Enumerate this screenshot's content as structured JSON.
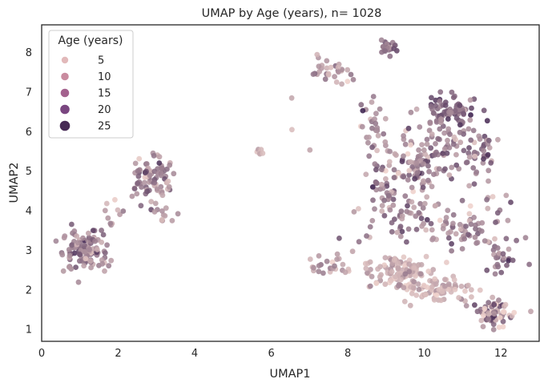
{
  "chart_data": {
    "type": "scatter",
    "title": "UMAP by Age (years), n= 1028",
    "xlabel": "UMAP1",
    "ylabel": "UMAP2",
    "xlim": [
      0,
      13
    ],
    "ylim": [
      0.7,
      8.7
    ],
    "x_ticks": [
      0,
      2,
      4,
      6,
      8,
      10,
      12
    ],
    "y_ticks": [
      1,
      2,
      3,
      4,
      5,
      6,
      7,
      8
    ],
    "grid": false,
    "legend": {
      "title": "Age (years)",
      "placement": "top-left",
      "entries": [
        {
          "label": "5",
          "value": 5,
          "color": "#e2b9ba"
        },
        {
          "label": "10",
          "value": 10,
          "color": "#c98b9f"
        },
        {
          "label": "15",
          "value": 15,
          "color": "#a4628e"
        },
        {
          "label": "20",
          "value": 20,
          "color": "#7a4680"
        },
        {
          "label": "25",
          "value": 25,
          "color": "#472a55"
        }
      ]
    },
    "color_scale": {
      "min_age": 1,
      "max_age": 27,
      "low_color": "#efd2cc",
      "high_color": "#3b1f4c"
    },
    "clusters": [
      {
        "cx": 1.15,
        "cy": 3.0,
        "rx": 0.55,
        "ry": 0.45,
        "n": 110,
        "age_mean": 12,
        "age_sd": 5
      },
      {
        "cx": 2.85,
        "cy": 4.85,
        "rx": 0.45,
        "ry": 0.55,
        "n": 85,
        "age_mean": 12,
        "age_sd": 5
      },
      {
        "cx": 5.7,
        "cy": 5.5,
        "rx": 0.12,
        "ry": 0.08,
        "n": 6,
        "age_mean": 6,
        "age_sd": 2
      },
      {
        "cx": 7.5,
        "cy": 7.5,
        "rx": 0.45,
        "ry": 0.3,
        "n": 30,
        "age_mean": 9,
        "age_sd": 5
      },
      {
        "cx": 9.05,
        "cy": 8.15,
        "rx": 0.25,
        "ry": 0.18,
        "n": 22,
        "age_mean": 15,
        "age_sd": 4
      },
      {
        "cx": 10.6,
        "cy": 6.5,
        "rx": 0.7,
        "ry": 0.35,
        "n": 90,
        "age_mean": 15,
        "age_sd": 4
      },
      {
        "cx": 9.8,
        "cy": 5.2,
        "rx": 1.3,
        "ry": 0.8,
        "n": 150,
        "age_mean": 12,
        "age_sd": 5
      },
      {
        "cx": 9.6,
        "cy": 3.8,
        "rx": 1.0,
        "ry": 0.6,
        "n": 60,
        "age_mean": 12,
        "age_sd": 5
      },
      {
        "cx": 9.4,
        "cy": 2.5,
        "rx": 0.9,
        "ry": 0.35,
        "n": 110,
        "age_mean": 6,
        "age_sd": 3
      },
      {
        "cx": 10.3,
        "cy": 2.0,
        "rx": 0.8,
        "ry": 0.3,
        "n": 80,
        "age_mean": 6,
        "age_sd": 3
      },
      {
        "cx": 7.6,
        "cy": 2.6,
        "rx": 0.6,
        "ry": 0.25,
        "n": 25,
        "age_mean": 8,
        "age_sd": 4
      },
      {
        "cx": 11.8,
        "cy": 1.4,
        "rx": 0.5,
        "ry": 0.3,
        "n": 70,
        "age_mean": 10,
        "age_sd": 6
      },
      {
        "cx": 11.9,
        "cy": 2.8,
        "rx": 0.35,
        "ry": 0.4,
        "n": 20,
        "age_mean": 14,
        "age_sd": 4
      },
      {
        "cx": 8.6,
        "cy": 6.2,
        "rx": 0.4,
        "ry": 0.5,
        "n": 25,
        "age_mean": 10,
        "age_sd": 5
      },
      {
        "cx": 11.4,
        "cy": 5.6,
        "rx": 0.5,
        "ry": 0.5,
        "n": 35,
        "age_mean": 14,
        "age_sd": 5
      },
      {
        "cx": 8.9,
        "cy": 4.5,
        "rx": 0.4,
        "ry": 0.5,
        "n": 20,
        "age_mean": 13,
        "age_sd": 4
      },
      {
        "cx": 11.0,
        "cy": 3.4,
        "rx": 0.5,
        "ry": 0.4,
        "n": 40,
        "age_mean": 13,
        "age_sd": 5
      },
      {
        "cx": 1.9,
        "cy": 3.95,
        "rx": 0.3,
        "ry": 0.25,
        "n": 10,
        "age_mean": 7,
        "age_sd": 3
      },
      {
        "cx": 3.2,
        "cy": 4.0,
        "rx": 0.3,
        "ry": 0.3,
        "n": 12,
        "age_mean": 8,
        "age_sd": 3
      },
      {
        "cx": 6.5,
        "cy": 6.0,
        "rx": 0.6,
        "ry": 1.2,
        "n": 3,
        "age_mean": 8,
        "age_sd": 3
      },
      {
        "cx": 12.0,
        "cy": 4.0,
        "rx": 0.8,
        "ry": 1.5,
        "n": 25,
        "age_mean": 11,
        "age_sd": 5
      }
    ]
  }
}
